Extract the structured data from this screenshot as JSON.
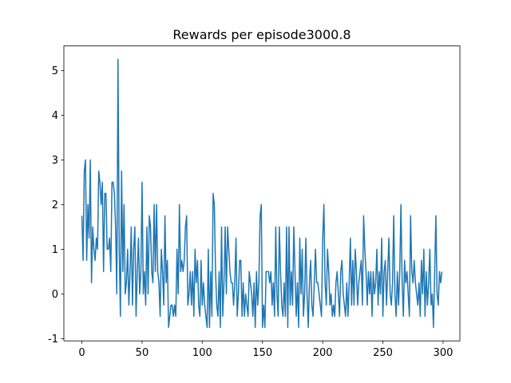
{
  "chart_data": {
    "type": "line",
    "title": "Rewards per episode3000.8",
    "x": [
      0,
      1,
      2,
      3,
      4,
      5,
      6,
      7,
      8,
      9,
      10,
      11,
      12,
      13,
      14,
      15,
      16,
      17,
      18,
      19,
      20,
      21,
      22,
      23,
      24,
      25,
      26,
      27,
      28,
      29,
      30,
      31,
      32,
      33,
      34,
      35,
      36,
      37,
      38,
      39,
      40,
      41,
      42,
      43,
      44,
      45,
      46,
      47,
      48,
      49,
      50,
      51,
      52,
      53,
      54,
      55,
      56,
      57,
      58,
      59,
      60,
      61,
      62,
      63,
      64,
      65,
      66,
      67,
      68,
      69,
      70,
      71,
      72,
      73,
      74,
      75,
      76,
      77,
      78,
      79,
      80,
      81,
      82,
      83,
      84,
      85,
      86,
      87,
      88,
      89,
      90,
      91,
      92,
      93,
      94,
      95,
      96,
      97,
      98,
      99,
      100,
      101,
      102,
      103,
      104,
      105,
      106,
      107,
      108,
      109,
      110,
      111,
      112,
      113,
      114,
      115,
      116,
      117,
      118,
      119,
      120,
      121,
      122,
      123,
      124,
      125,
      126,
      127,
      128,
      129,
      130,
      131,
      132,
      133,
      134,
      135,
      136,
      137,
      138,
      139,
      140,
      141,
      142,
      143,
      144,
      145,
      146,
      147,
      148,
      149,
      150,
      151,
      152,
      153,
      154,
      155,
      156,
      157,
      158,
      159,
      160,
      161,
      162,
      163,
      164,
      165,
      166,
      167,
      168,
      169,
      170,
      171,
      172,
      173,
      174,
      175,
      176,
      177,
      178,
      179,
      180,
      181,
      182,
      183,
      184,
      185,
      186,
      187,
      188,
      189,
      190,
      191,
      192,
      193,
      194,
      195,
      196,
      197,
      198,
      199,
      200,
      201,
      202,
      203,
      204,
      205,
      206,
      207,
      208,
      209,
      210,
      211,
      212,
      213,
      214,
      215,
      216,
      217,
      218,
      219,
      220,
      221,
      222,
      223,
      224,
      225,
      226,
      227,
      228,
      229,
      230,
      231,
      232,
      233,
      234,
      235,
      236,
      237,
      238,
      239,
      240,
      241,
      242,
      243,
      244,
      245,
      246,
      247,
      248,
      249,
      250,
      251,
      252,
      253,
      254,
      255,
      256,
      257,
      258,
      259,
      260,
      261,
      262,
      263,
      264,
      265,
      266,
      267,
      268,
      269,
      270,
      271,
      272,
      273,
      274,
      275,
      276,
      277,
      278,
      279,
      280,
      281,
      282,
      283,
      284,
      285,
      286,
      287,
      288,
      289,
      290,
      291,
      292,
      293,
      294,
      295,
      296,
      297,
      298,
      299
    ],
    "series": [
      {
        "color": "#1f77b4",
        "values": [
          1.75,
          0.75,
          2.75,
          3,
          0.75,
          2,
          1.25,
          3,
          0.25,
          1.5,
          1,
          0.75,
          1.25,
          1,
          2.75,
          2.5,
          2,
          2.5,
          0.5,
          2.25,
          2.25,
          1,
          1,
          1.25,
          0.5,
          2.5,
          2.5,
          2.25,
          1.5,
          0,
          5.25,
          1,
          -0.5,
          2.75,
          0.5,
          2,
          0,
          0.25,
          1,
          -0.25,
          0.5,
          1.5,
          -0.25,
          1,
          1.5,
          -0.5,
          0.5,
          1.25,
          0,
          0.5,
          2.5,
          0,
          0.5,
          -0.25,
          1.5,
          0,
          1.75,
          1.5,
          0.5,
          0.25,
          2,
          0.5,
          2,
          0.5,
          0.25,
          -0.5,
          1,
          0.5,
          -0.25,
          1.75,
          0.25,
          0.75,
          -0.75,
          -0.5,
          -0.25,
          -0.25,
          -0.5,
          -0.25,
          -0.5,
          1,
          0,
          2,
          0.5,
          0.75,
          0.5,
          0.75,
          1.5,
          1.75,
          -0.25,
          0,
          0.5,
          -0.25,
          0.5,
          -0.5,
          1,
          0.25,
          0.75,
          -0.25,
          -0.5,
          0.75,
          -0.25,
          0.25,
          -0.25,
          -0.5,
          -0.75,
          1,
          -0.75,
          0.5,
          -0.5,
          2.25,
          2,
          0.5,
          -0.25,
          -0.5,
          0.5,
          -0.75,
          1.5,
          -0.5,
          0.25,
          1.5,
          0,
          1.5,
          1,
          0.5,
          0.25,
          0.25,
          -0.25,
          0.25,
          1.25,
          -0.5,
          0,
          0.75,
          0.75,
          -0.5,
          0.25,
          -0.5,
          0,
          -0.25,
          -0.5,
          0.5,
          0.25,
          0,
          -0.5,
          0.25,
          -0.75,
          0.5,
          -0.25,
          0.25,
          1.75,
          2,
          -0.75,
          -0.25,
          -0.75,
          0.5,
          0.5,
          0.5,
          0.25,
          0.5,
          -0.25,
          0.25,
          -0.5,
          1.5,
          0,
          -0.5,
          1.5,
          0.5,
          -0.25,
          -0.5,
          0.25,
          -0.5,
          1.5,
          -0.75,
          1.5,
          -0.25,
          0.5,
          -0.25,
          1.5,
          0.5,
          -0.5,
          0.25,
          -0.75,
          1.25,
          0,
          1,
          -0.5,
          0,
          1.25,
          0,
          -0.75,
          0.25,
          0.75,
          -0.25,
          -0.5,
          0.25,
          1,
          0.25,
          0.25,
          0,
          -0.25,
          -0.5,
          1.25,
          2,
          0.25,
          -0.25,
          1,
          0.5,
          -0.25,
          0,
          -0.5,
          -0.25,
          -0.5,
          0.25,
          0.5,
          0,
          -0.5,
          0.5,
          0.75,
          0,
          -0.25,
          -0.5,
          0.25,
          -0.5,
          0.25,
          1.25,
          -0.25,
          0.75,
          -0.25,
          1,
          0.5,
          -0.25,
          0.25,
          0.5,
          0.75,
          -0.25,
          1.75,
          1,
          0.5,
          -0.25,
          0.5,
          0,
          0.5,
          -0.5,
          0.5,
          0,
          0.25,
          1,
          -0.25,
          0.5,
          0,
          1.25,
          -0.5,
          0.5,
          0.75,
          -0.25,
          0.5,
          1.25,
          0,
          -0.25,
          0.25,
          1.75,
          0,
          -0.5,
          0.5,
          -0.25,
          0.5,
          2,
          0.25,
          -0.5,
          0.75,
          0.25,
          0.5,
          0,
          -0.5,
          1.75,
          0.5,
          0.25,
          0.75,
          0.25,
          0,
          -0.25,
          0.25,
          -0.5,
          0.75,
          0,
          1,
          -0.5,
          0.5,
          -0.25,
          0.25,
          1,
          -0.25,
          0,
          -0.75,
          0.5,
          1.75,
          0,
          -0.25,
          0.5,
          0.25,
          0.5
        ]
      }
    ],
    "xlim": [
      -14.95,
      313.95
    ],
    "xticks": [
      0,
      50,
      100,
      150,
      200,
      250,
      300
    ],
    "ylim": [
      -1.05,
      5.55
    ],
    "yticks": [
      -1,
      0,
      1,
      2,
      3,
      4,
      5
    ],
    "grid": false
  }
}
